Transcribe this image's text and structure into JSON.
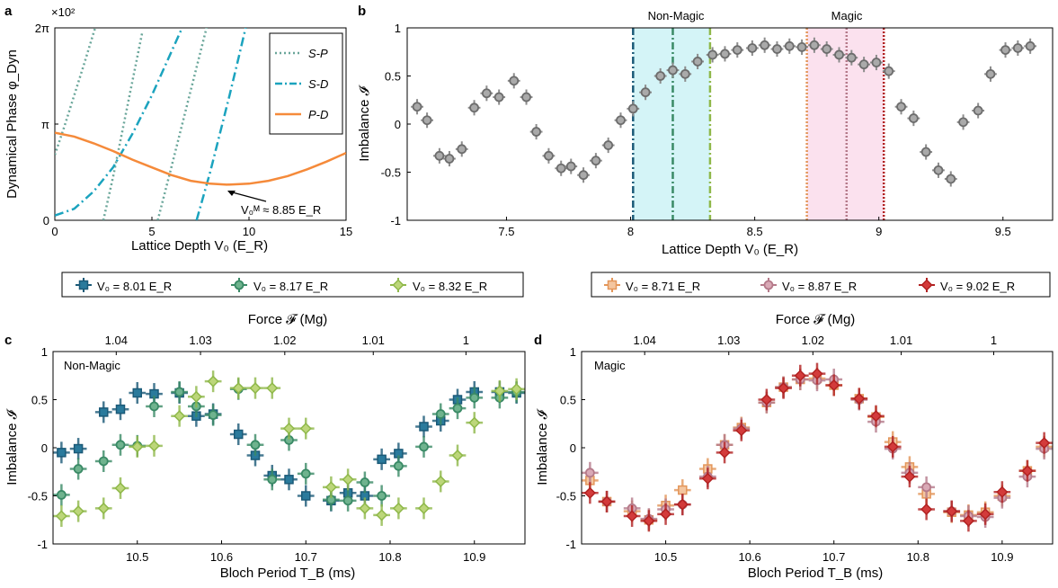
{
  "panels": {
    "a": {
      "letter": "a",
      "xlabel": "Lattice Depth V₀ (E_R)",
      "ylabel": "Dynamical Phase φ_Dyn",
      "exponent": "×10²",
      "xticks": [
        "0",
        "5",
        "10",
        "15"
      ],
      "yticks": [
        "0",
        "π",
        "2π"
      ],
      "annotation": "V₀ᴹ ≈ 8.85 E_R",
      "legend": [
        "S-P",
        "S-D",
        "P-D"
      ]
    },
    "b": {
      "letter": "b",
      "xlabel": "Lattice Depth V₀ (E_R)",
      "ylabel": "Imbalance 𝓘",
      "xticks": [
        "7.5",
        "8",
        "8.5",
        "9",
        "9.5"
      ],
      "yticks": [
        "-1",
        "-0.5",
        "0",
        "0.5",
        "1"
      ],
      "region_nonmagic": "Non-Magic",
      "region_magic": "Magic"
    },
    "c": {
      "letter": "c",
      "label": "Non-Magic",
      "xlabel": "Bloch Period T_B (ms)",
      "ylabel": "Imbalance 𝓘",
      "toplabel": "Force 𝓕 (Mg)",
      "xticks": [
        "10.5",
        "10.6",
        "10.7",
        "10.8",
        "10.9"
      ],
      "topticks": [
        "1.04",
        "1.03",
        "1.02",
        "1.01",
        "1"
      ],
      "yticks": [
        "-1",
        "-0.5",
        "0",
        "0.5",
        "1"
      ]
    },
    "d": {
      "letter": "d",
      "label": "Magic",
      "xlabel": "Bloch Period T_B (ms)",
      "ylabel": "Imbalance 𝓘",
      "toplabel": "Force 𝓕 (Mg)",
      "xticks": [
        "10.5",
        "10.6",
        "10.7",
        "10.8",
        "10.9"
      ],
      "topticks": [
        "1.04",
        "1.03",
        "1.02",
        "1.01",
        "1"
      ],
      "yticks": [
        "-1",
        "-0.5",
        "0",
        "0.5",
        "1"
      ]
    }
  },
  "legend_left": [
    "V₀ = 8.01 E_R",
    "V₀ = 8.17 E_R",
    "V₀ = 8.32 E_R"
  ],
  "legend_right": [
    "V₀ = 8.71 E_R",
    "V₀ = 8.87 E_R",
    "V₀ = 9.02 E_R"
  ],
  "colors": {
    "sp": "#6aa69a",
    "sd": "#1ba3be",
    "pd": "#f58a3a",
    "gray": "#8c8c8c",
    "v801": "#1b5a78",
    "v817": "#3a8a66",
    "v832": "#8fb84a",
    "v871": "#e3965a",
    "v887": "#b57a8a",
    "v902": "#b22222"
  },
  "chart_data": [
    {
      "type": "line",
      "panel": "a",
      "xlim": [
        0,
        15
      ],
      "ylim_pi": [
        0,
        2
      ],
      "series": [
        {
          "name": "S-P",
          "style": "dotted",
          "x": [
            0,
            0.5,
            1,
            1.5,
            2,
            2.5
          ],
          "y_pi": [
            0.68,
            0.98,
            1.3,
            1.62,
            1.95,
            2.25
          ]
        },
        {
          "name": "S-P",
          "style": "dotted",
          "x": [
            2.5,
            3,
            3.5,
            4,
            4.5
          ],
          "y_pi": [
            0,
            0.45,
            0.95,
            1.45,
            1.95
          ]
        },
        {
          "name": "S-P",
          "style": "dotted",
          "x": [
            5.3,
            6,
            6.5,
            7,
            7.5,
            8
          ],
          "y_pi": [
            0,
            0.55,
            0.95,
            1.35,
            1.75,
            2.15
          ]
        },
        {
          "name": "S-D",
          "style": "dashdot",
          "x": [
            0,
            1,
            2,
            3,
            4,
            5,
            6,
            7
          ],
          "y_pi": [
            0.05,
            0.12,
            0.3,
            0.55,
            0.9,
            1.3,
            1.75,
            2.2
          ]
        },
        {
          "name": "S-D",
          "style": "dashdot",
          "x": [
            7.3,
            8,
            8.5,
            9,
            9.5,
            10
          ],
          "y_pi": [
            0,
            0.5,
            0.9,
            1.3,
            1.72,
            2.15
          ]
        },
        {
          "name": "P-D",
          "style": "solid",
          "x": [
            0,
            1,
            2,
            3,
            4,
            5,
            6,
            7,
            8,
            8.85,
            10,
            11,
            12,
            13,
            14,
            15
          ],
          "y_pi": [
            0.91,
            0.87,
            0.8,
            0.72,
            0.63,
            0.55,
            0.47,
            0.41,
            0.38,
            0.37,
            0.38,
            0.41,
            0.46,
            0.53,
            0.61,
            0.7
          ]
        }
      ]
    },
    {
      "type": "scatter",
      "panel": "b",
      "xlim": [
        7.1,
        9.7
      ],
      "ylim": [
        -1,
        1
      ],
      "marker_lines": [
        8.01,
        8.17,
        8.32,
        8.71,
        8.87,
        9.02
      ],
      "x": [
        7.14,
        7.18,
        7.23,
        7.27,
        7.32,
        7.37,
        7.42,
        7.47,
        7.53,
        7.58,
        7.62,
        7.67,
        7.72,
        7.76,
        7.81,
        7.86,
        7.91,
        7.96,
        8.01,
        8.06,
        8.12,
        8.17,
        8.22,
        8.27,
        8.33,
        8.38,
        8.43,
        8.49,
        8.54,
        8.59,
        8.64,
        8.69,
        8.74,
        8.79,
        8.84,
        8.89,
        8.94,
        8.99,
        9.04,
        9.09,
        9.14,
        9.19,
        9.24,
        9.29,
        9.34,
        9.4,
        9.45,
        9.51,
        9.56,
        9.61
      ],
      "y": [
        0.18,
        0.04,
        -0.33,
        -0.36,
        -0.26,
        0.17,
        0.32,
        0.28,
        0.45,
        0.28,
        -0.08,
        -0.33,
        -0.46,
        -0.44,
        -0.53,
        -0.38,
        -0.22,
        0.04,
        0.16,
        0.33,
        0.5,
        0.56,
        0.52,
        0.65,
        0.72,
        0.73,
        0.77,
        0.79,
        0.82,
        0.78,
        0.81,
        0.8,
        0.82,
        0.78,
        0.72,
        0.69,
        0.62,
        0.64,
        0.55,
        0.18,
        0.06,
        -0.29,
        -0.48,
        -0.57,
        0.02,
        0.14,
        0.52,
        0.77,
        0.79,
        0.81
      ],
      "xerr": 0.025,
      "yerr": 0.08
    },
    {
      "type": "scatter",
      "panel": "c",
      "xlim": [
        10.4,
        10.96
      ],
      "ylim": [
        -1,
        1
      ],
      "xerr": 0.01,
      "series": [
        {
          "name": "V₀ = 8.01 E_R",
          "marker": "square",
          "x": [
            10.41,
            10.43,
            10.46,
            10.48,
            10.5,
            10.52,
            10.55,
            10.57,
            10.59,
            10.62,
            10.64,
            10.66,
            10.68,
            10.7,
            10.73,
            10.75,
            10.77,
            10.79,
            10.81,
            10.84,
            10.86,
            10.88,
            10.9,
            10.93,
            10.95
          ],
          "y": [
            -0.05,
            -0.01,
            0.37,
            0.4,
            0.57,
            0.56,
            0.57,
            0.33,
            0.35,
            0.14,
            -0.08,
            -0.29,
            -0.33,
            -0.5,
            -0.55,
            -0.47,
            -0.5,
            -0.12,
            -0.06,
            0.22,
            0.28,
            0.5,
            0.58,
            0.58,
            0.57
          ]
        },
        {
          "name": "V₀ = 8.17 E_R",
          "marker": "circle",
          "x": [
            10.41,
            10.43,
            10.46,
            10.48,
            10.5,
            10.52,
            10.55,
            10.57,
            10.59,
            10.62,
            10.64,
            10.66,
            10.68,
            10.7,
            10.73,
            10.75,
            10.77,
            10.79,
            10.81,
            10.84,
            10.86,
            10.88,
            10.9,
            10.93,
            10.95
          ],
          "y": [
            -0.49,
            -0.22,
            -0.14,
            0.03,
            0.02,
            0.43,
            0.58,
            0.43,
            0.34,
            0.61,
            0.03,
            -0.33,
            0.08,
            -0.27,
            -0.54,
            -0.55,
            -0.36,
            -0.5,
            -0.19,
            0.01,
            0.35,
            0.41,
            0.52,
            0.52,
            0.58
          ]
        },
        {
          "name": "V₀ = 8.32 E_R",
          "marker": "diamond",
          "x": [
            10.41,
            10.43,
            10.46,
            10.48,
            10.5,
            10.52,
            10.55,
            10.57,
            10.59,
            10.62,
            10.64,
            10.66,
            10.68,
            10.7,
            10.73,
            10.75,
            10.77,
            10.79,
            10.81,
            10.84,
            10.86,
            10.88,
            10.9,
            10.93,
            10.95
          ],
          "y": [
            -0.71,
            -0.66,
            -0.63,
            -0.42,
            0.01,
            0.02,
            0.33,
            0.53,
            0.69,
            0.62,
            0.62,
            0.62,
            0.2,
            0.2,
            -0.41,
            -0.33,
            -0.63,
            -0.7,
            -0.63,
            -0.63,
            -0.35,
            -0.08,
            0.26,
            0.59,
            0.61
          ]
        }
      ]
    },
    {
      "type": "scatter",
      "panel": "d",
      "xlim": [
        10.4,
        10.96
      ],
      "ylim": [
        -1,
        1
      ],
      "xerr": 0.01,
      "series": [
        {
          "name": "V₀ = 8.71 E_R",
          "marker": "square",
          "x": [
            10.41,
            10.43,
            10.46,
            10.48,
            10.5,
            10.52,
            10.55,
            10.57,
            10.59,
            10.62,
            10.64,
            10.66,
            10.68,
            10.7,
            10.73,
            10.75,
            10.77,
            10.79,
            10.81,
            10.84,
            10.86,
            10.88,
            10.9,
            10.93,
            10.95
          ],
          "y": [
            -0.34,
            -0.56,
            -0.66,
            -0.75,
            -0.6,
            -0.44,
            -0.22,
            0.03,
            0.21,
            0.47,
            0.63,
            0.71,
            0.72,
            0.65,
            0.51,
            0.32,
            0.06,
            -0.2,
            -0.48,
            -0.67,
            -0.7,
            -0.67,
            -0.5,
            -0.24,
            0.01
          ]
        },
        {
          "name": "V₀ = 8.87 E_R",
          "marker": "circle",
          "x": [
            10.41,
            10.43,
            10.46,
            10.48,
            10.5,
            10.52,
            10.55,
            10.57,
            10.59,
            10.62,
            10.64,
            10.66,
            10.68,
            10.7,
            10.73,
            10.75,
            10.77,
            10.79,
            10.81,
            10.84,
            10.86,
            10.88,
            10.9,
            10.93,
            10.95
          ],
          "y": [
            -0.26,
            -0.56,
            -0.63,
            -0.74,
            -0.64,
            -0.59,
            -0.3,
            0.03,
            0.2,
            0.47,
            0.63,
            0.71,
            0.7,
            0.71,
            0.5,
            0.27,
            -0.01,
            -0.26,
            -0.41,
            -0.66,
            -0.71,
            -0.72,
            -0.52,
            -0.3,
            -0.01
          ]
        },
        {
          "name": "V₀ = 9.02 E_R",
          "marker": "diamond",
          "x": [
            10.41,
            10.43,
            10.46,
            10.48,
            10.5,
            10.52,
            10.55,
            10.57,
            10.59,
            10.62,
            10.64,
            10.66,
            10.68,
            10.7,
            10.73,
            10.75,
            10.77,
            10.79,
            10.81,
            10.84,
            10.86,
            10.88,
            10.9,
            10.93,
            10.95
          ],
          "y": [
            -0.47,
            -0.56,
            -0.71,
            -0.76,
            -0.69,
            -0.59,
            -0.32,
            -0.05,
            0.18,
            0.5,
            0.62,
            0.75,
            0.77,
            0.65,
            0.51,
            0.33,
            0.01,
            -0.3,
            -0.64,
            -0.66,
            -0.76,
            -0.69,
            -0.46,
            -0.24,
            0.05
          ]
        }
      ]
    }
  ]
}
